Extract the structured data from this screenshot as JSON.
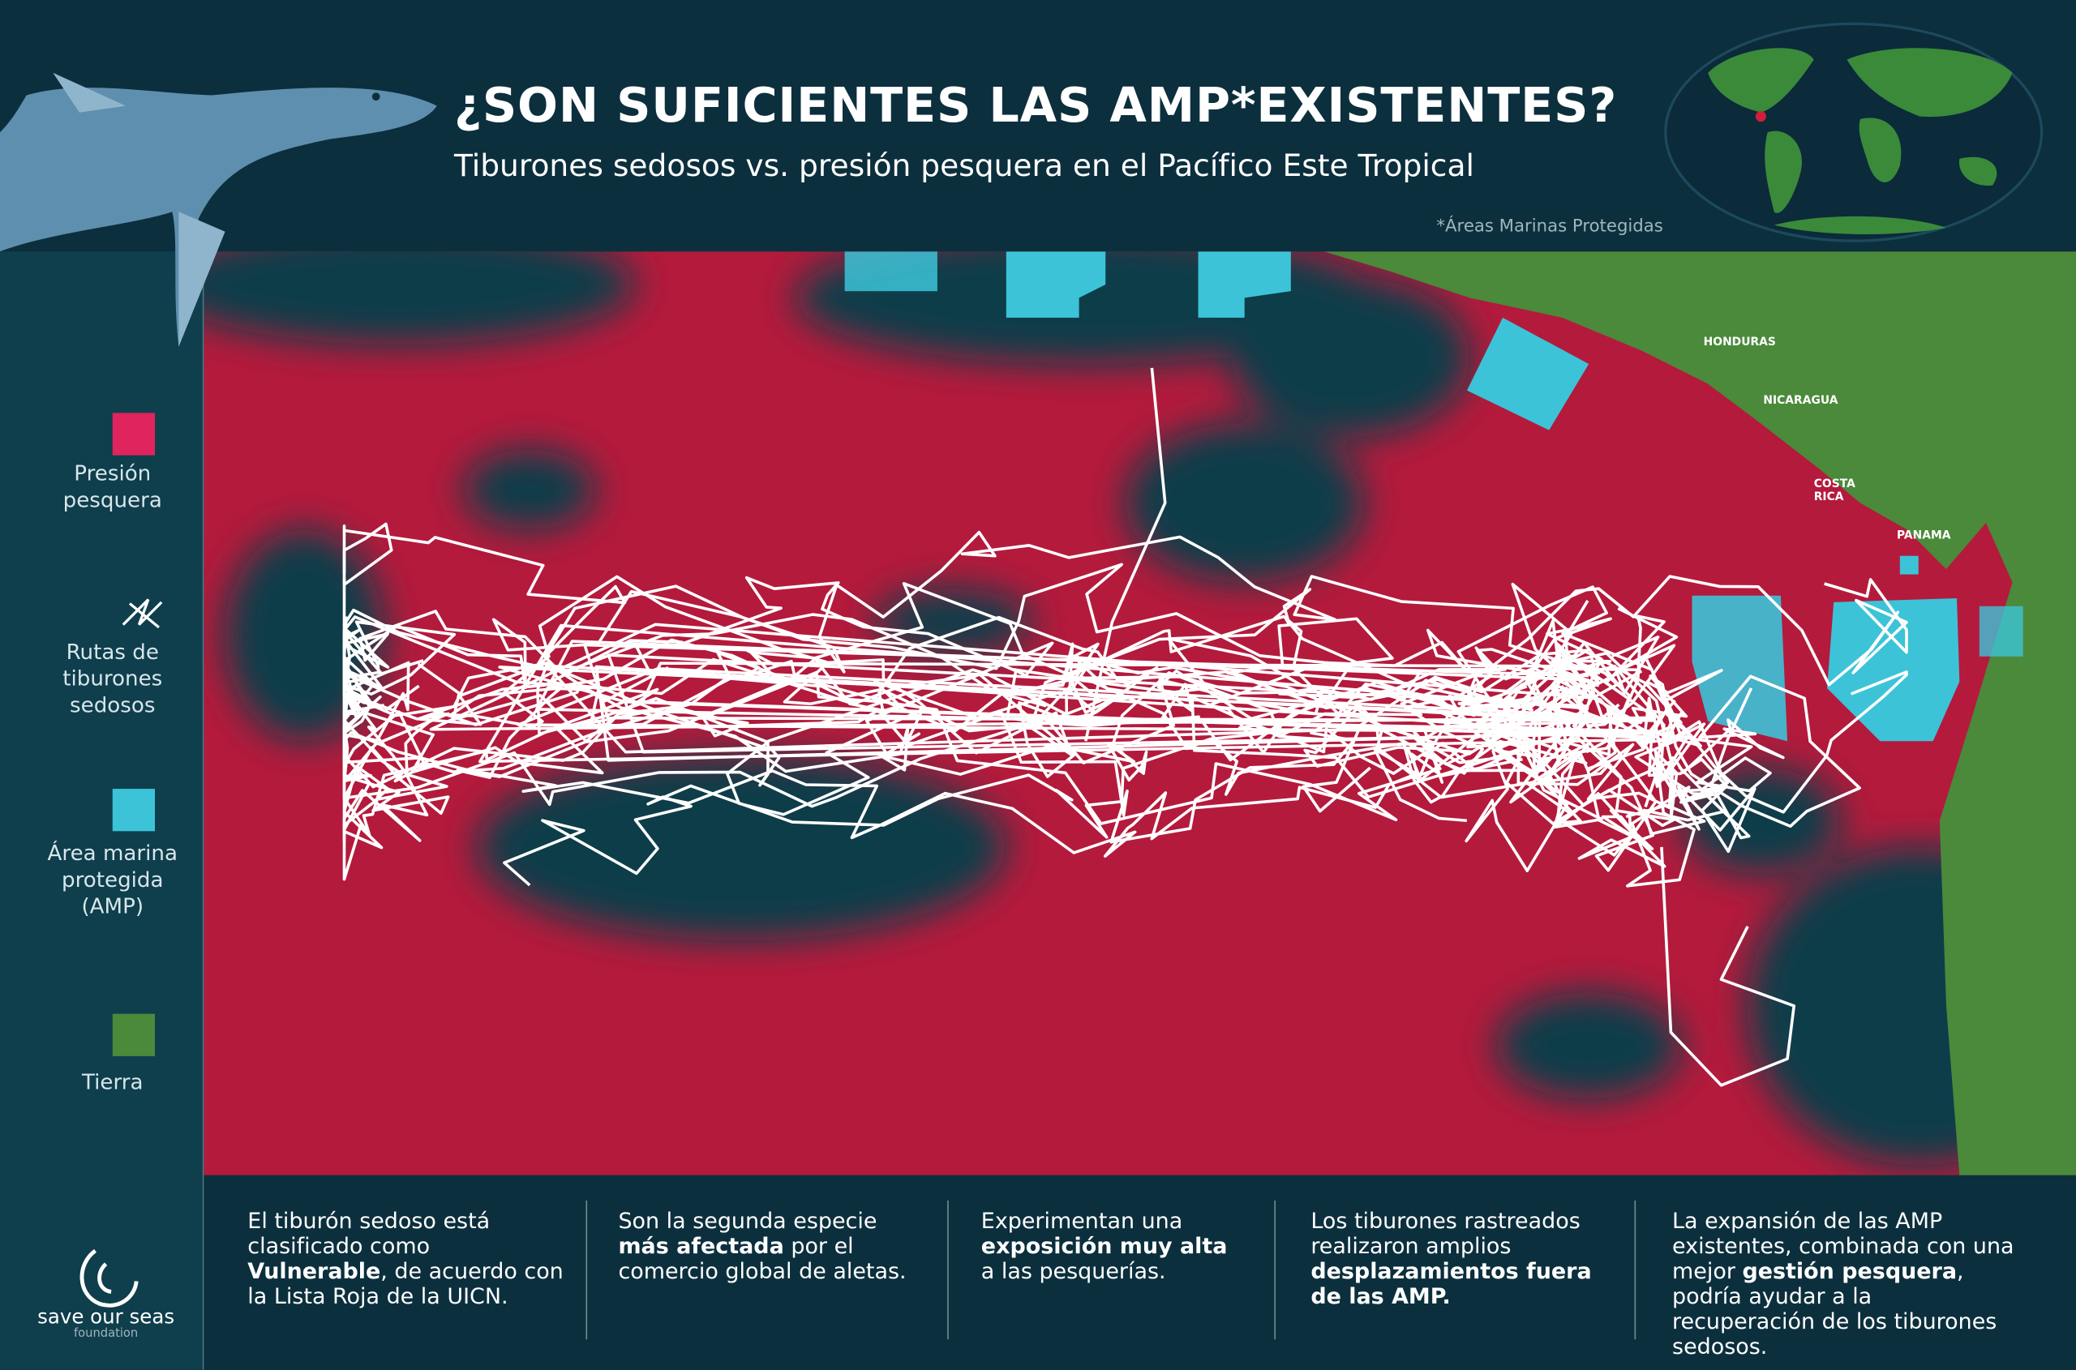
{
  "header": {
    "title": "¿SON SUFICIENTES LAS AMP*EXISTENTES?",
    "subtitle": "Tiburones sedosos vs. presión pesquera en el Pacífico Este Tropical",
    "footnote": "*Áreas Marinas Protegidas"
  },
  "legend": {
    "items": [
      {
        "label": "Presión pesquera",
        "color": "#e0245e"
      },
      {
        "label": "Rutas de tiburones sedosos"
      },
      {
        "label": "Área marina protegida (AMP)",
        "color": "#3cc3d8"
      },
      {
        "label": "Tierra",
        "color": "#4a8a3a"
      }
    ]
  },
  "map": {
    "labels": [
      "HONDURAS",
      "NICARAGUA",
      "COSTA RICA",
      "PANAMA"
    ]
  },
  "facts": [
    {
      "parts": [
        {
          "text": "El tiburón sedoso está clasificado como ",
          "bold": false
        },
        {
          "text": "Vulnerable",
          "bold": true
        },
        {
          "text": ", de acuerdo con la Lista Roja de la UICN.",
          "bold": false
        }
      ]
    },
    {
      "parts": [
        {
          "text": "Son la segunda especie ",
          "bold": false
        },
        {
          "text": "más afectada",
          "bold": true
        },
        {
          "text": " por el comercio global de aletas.",
          "bold": false
        }
      ]
    },
    {
      "parts": [
        {
          "text": "Experimentan una ",
          "bold": false
        },
        {
          "text": "exposición muy alta",
          "bold": true
        },
        {
          "text": " a las pesquerías.",
          "bold": false
        }
      ]
    },
    {
      "parts": [
        {
          "text": "Los tiburones rastreados realizaron amplios ",
          "bold": false
        },
        {
          "text": "desplazamientos fuera de las AMP.",
          "bold": true
        }
      ]
    },
    {
      "parts": [
        {
          "text": "La expansión de las AMP existentes, combinada con una mejor ",
          "bold": false
        },
        {
          "text": "gestión pesquera",
          "bold": true
        },
        {
          "text": ", podría ayudar a la recuperación de los tiburones sedosos.",
          "bold": false
        }
      ]
    }
  ],
  "logo": {
    "name": "save our seas",
    "tagline": "foundation"
  }
}
